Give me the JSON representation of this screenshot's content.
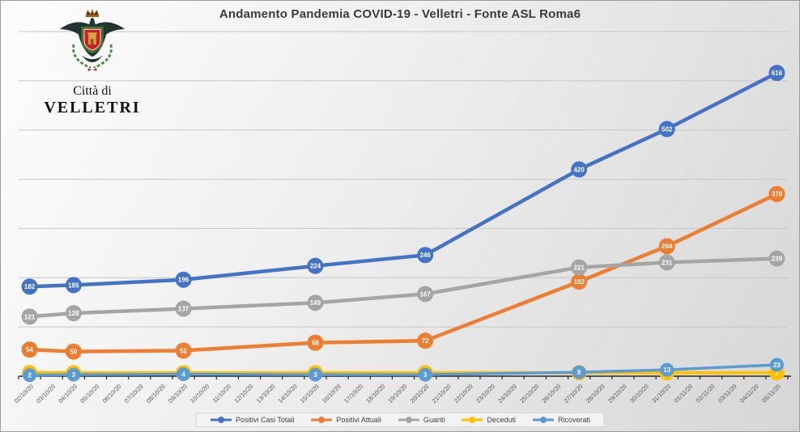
{
  "title": "Andamento Pandemia COVID-19 - Velletri - Fonte ASL Roma6",
  "logo": {
    "line1": "Città di",
    "line2": "VELLETRI"
  },
  "colors": {
    "total_blue": "#4472C4",
    "current_orange": "#ED7D31",
    "recovered_gray": "#A5A5A5",
    "deceased_yellow": "#FFC000",
    "hospitalized_lightblue": "#5B9BD5",
    "axis": "#262626",
    "gridline": "#c6c6c6",
    "tick_label": "#595959",
    "title_text": "#3a3a3a"
  },
  "chart_data": {
    "type": "line",
    "title": "Andamento Pandemia COVID-19 - Velletri - Fonte ASL Roma6",
    "categories": [
      "02/10/20",
      "03/10/20",
      "04/10/20",
      "05/10/20",
      "06/10/20",
      "07/10/20",
      "08/10/20",
      "09/10/20",
      "10/10/20",
      "11/10/20",
      "12/10/20",
      "13/10/20",
      "14/10/20",
      "15/10/20",
      "16/10/20",
      "17/10/20",
      "18/10/20",
      "19/10/20",
      "20/10/20",
      "21/10/20",
      "22/10/20",
      "23/10/20",
      "24/10/20",
      "25/10/20",
      "26/10/20",
      "27/10/20",
      "28/10/20",
      "29/10/20",
      "30/10/20",
      "31/10/20",
      "01/11/20",
      "02/11/20",
      "03/11/20",
      "04/11/20",
      "05/11/20"
    ],
    "point_dates": [
      "02/10/20",
      "04/10/20",
      "09/10/20",
      "15/10/20",
      "20/10/20",
      "27/10/20",
      "31/10/20",
      "05/11/20"
    ],
    "point_indices": [
      0,
      2,
      7,
      13,
      18,
      25,
      29,
      34
    ],
    "series": [
      {
        "name": "Positivi Casi Totali",
        "color": "#4472C4",
        "values": [
          182,
          185,
          196,
          224,
          246,
          420,
          502,
          616
        ],
        "marker_r": 10,
        "width": 4.5
      },
      {
        "name": "Positivi Attuali",
        "color": "#ED7D31",
        "values": [
          54,
          50,
          52,
          68,
          72,
          192,
          264,
          370
        ],
        "marker_r": 10,
        "width": 4.5
      },
      {
        "name": "Guariti",
        "color": "#A5A5A5",
        "values": [
          121,
          128,
          137,
          149,
          167,
          221,
          231,
          239
        ],
        "marker_r": 10,
        "width": 4.5
      },
      {
        "name": "Deceduti",
        "color": "#FFC000",
        "values": [
          7,
          7,
          7,
          7,
          7,
          7,
          7,
          7
        ],
        "marker_r": 9.5,
        "width": 4
      },
      {
        "name": "Ricoverati",
        "color": "#5B9BD5",
        "values": [
          2,
          3,
          4,
          3,
          3,
          8,
          13,
          23
        ],
        "marker_r": 8.5,
        "width": 3.5
      }
    ],
    "xlabel": "",
    "ylabel": "",
    "ylim": [
      0,
      700
    ],
    "grid_step": 100,
    "grid": true,
    "y_axis_labels": false,
    "legend_position": "bottom"
  }
}
